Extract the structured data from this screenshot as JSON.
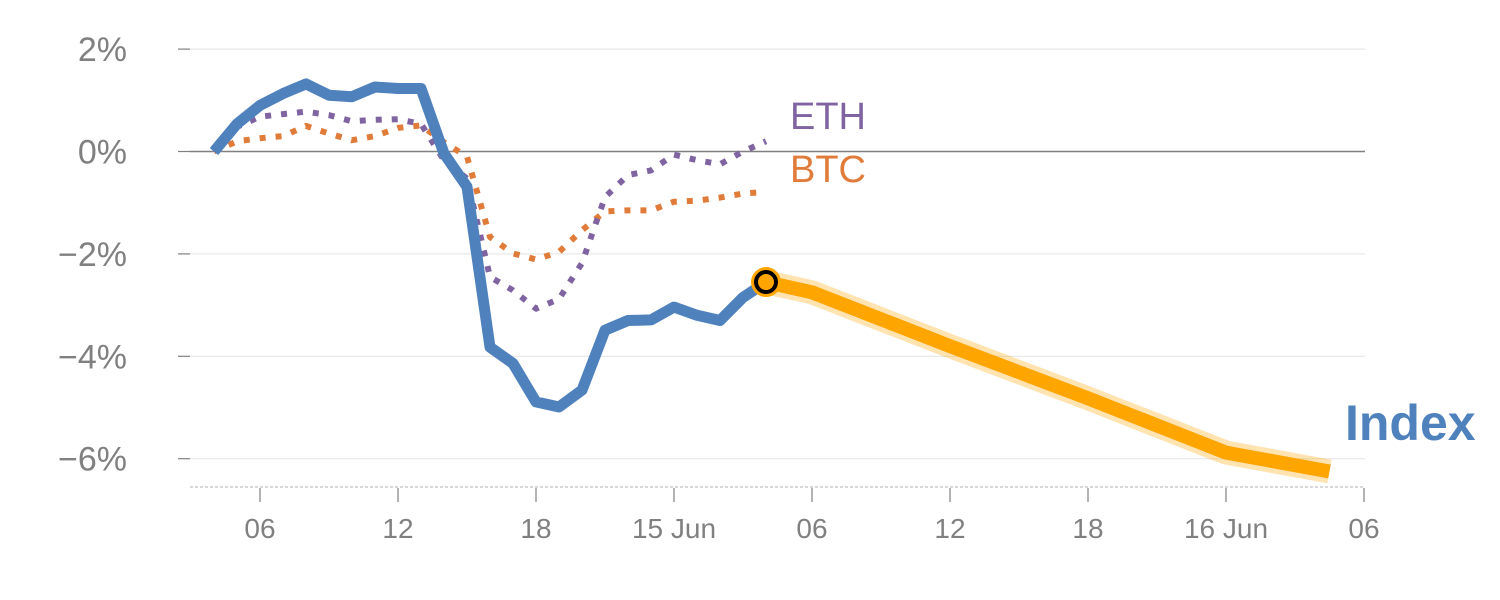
{
  "chart_data": {
    "type": "line",
    "title": "",
    "xlabel": "",
    "ylabel": "",
    "x_unit": "hours since 14 Jun 00:00",
    "xlim": [
      0,
      54
    ],
    "ylim": [
      -6.6,
      2.2
    ],
    "grid": true,
    "y_ticks": [
      {
        "value": 2,
        "label": "2%"
      },
      {
        "value": 0,
        "label": "0%"
      },
      {
        "value": -2,
        "label": "−2%"
      },
      {
        "value": -4,
        "label": "−4%"
      },
      {
        "value": -6,
        "label": "−6%"
      }
    ],
    "x_ticks": [
      {
        "value": 6,
        "label": "06"
      },
      {
        "value": 12,
        "label": "12"
      },
      {
        "value": 18,
        "label": "18"
      },
      {
        "value": 24,
        "label": "15 Jun"
      },
      {
        "value": 30,
        "label": "06"
      },
      {
        "value": 36,
        "label": "12"
      },
      {
        "value": 42,
        "label": "18"
      },
      {
        "value": 48,
        "label": "16 Jun"
      },
      {
        "value": 54,
        "label": "06"
      }
    ],
    "series": [
      {
        "name": "Index",
        "label": "Index",
        "color": "#4f81bd",
        "style": "solid",
        "x": [
          4,
          5,
          6,
          7,
          8,
          9,
          10,
          11,
          12,
          13,
          14,
          15,
          16,
          17,
          18,
          19,
          20,
          21,
          22,
          23,
          24,
          25,
          26,
          27,
          28
        ],
        "values": [
          0.0,
          0.54,
          0.9,
          1.13,
          1.32,
          1.1,
          1.07,
          1.26,
          1.23,
          1.23,
          -0.04,
          -0.69,
          -3.82,
          -4.14,
          -4.89,
          -4.99,
          -4.66,
          -3.49,
          -3.3,
          -3.29,
          -3.04,
          -3.2,
          -3.3,
          -2.85,
          -2.55
        ]
      },
      {
        "name": "ETH",
        "label": "ETH",
        "color": "#8064a2",
        "style": "dotted",
        "x": [
          4,
          5,
          6,
          7,
          8,
          9,
          10,
          11,
          12,
          13,
          14,
          15,
          16,
          17,
          18,
          19,
          20,
          21,
          22,
          23,
          24,
          25,
          26,
          27,
          28
        ],
        "values": [
          0.0,
          0.48,
          0.68,
          0.73,
          0.78,
          0.71,
          0.59,
          0.62,
          0.63,
          0.54,
          -0.17,
          -0.53,
          -2.45,
          -2.71,
          -3.07,
          -2.88,
          -2.18,
          -0.89,
          -0.46,
          -0.37,
          -0.06,
          -0.17,
          -0.25,
          0.0,
          0.2
        ]
      },
      {
        "name": "BTC",
        "label": "BTC",
        "color": "#e07b39",
        "style": "dotted",
        "x": [
          4,
          5,
          6,
          7,
          8,
          9,
          10,
          11,
          12,
          13,
          14,
          15,
          16,
          17,
          18,
          19,
          20,
          21,
          22,
          23,
          24,
          25,
          26,
          27,
          28
        ],
        "values": [
          0.0,
          0.2,
          0.26,
          0.3,
          0.5,
          0.35,
          0.22,
          0.3,
          0.46,
          0.51,
          0.18,
          -0.1,
          -1.67,
          -1.99,
          -2.11,
          -1.96,
          -1.54,
          -1.17,
          -1.15,
          -1.15,
          -0.98,
          -0.96,
          -0.9,
          -0.82,
          -0.79
        ]
      },
      {
        "name": "Index forecast",
        "color": "#ffa500",
        "style": "thick",
        "x": [
          28,
          30,
          36,
          42,
          48,
          52.5
        ],
        "values": [
          -2.55,
          -2.75,
          -3.8,
          -4.82,
          -5.88,
          -6.25
        ]
      }
    ],
    "marker": {
      "x": 28,
      "value": -2.55,
      "color": "#ffa500"
    }
  }
}
